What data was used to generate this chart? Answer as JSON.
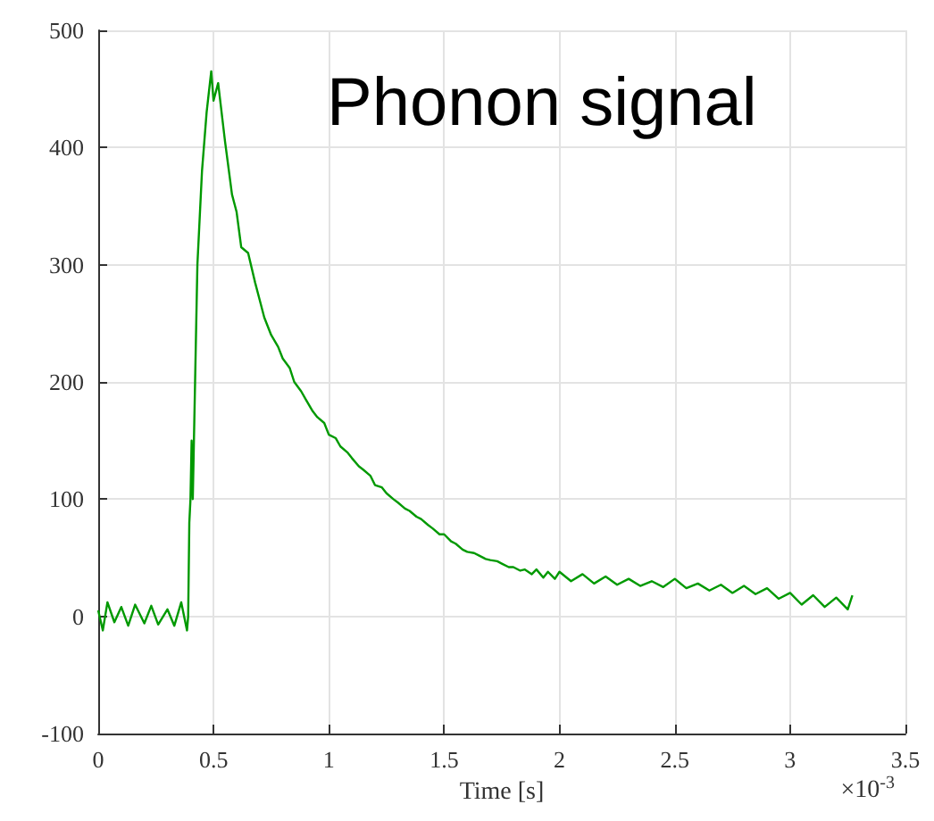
{
  "chart_data": {
    "type": "line",
    "title": "Phonon signal",
    "xlabel": "Time [s]",
    "annotations": [
      "×10$^{-3}$"
    ],
    "series": [
      {
        "color": "#009900",
        "x": [
          0,
          0.02,
          0.04,
          0.07,
          0.1,
          0.13,
          0.16,
          0.2,
          0.23,
          0.26,
          0.3,
          0.33,
          0.36,
          0.385,
          0.39,
          0.395,
          0.4,
          0.405,
          0.41,
          0.42,
          0.43,
          0.45,
          0.47,
          0.49,
          0.5,
          0.52,
          0.55,
          0.58,
          0.6,
          0.62,
          0.65,
          0.68,
          0.7,
          0.72,
          0.75,
          0.78,
          0.8,
          0.83,
          0.85,
          0.88,
          0.9,
          0.93,
          0.95,
          0.98,
          1.0,
          1.03,
          1.05,
          1.08,
          1.1,
          1.13,
          1.15,
          1.18,
          1.2,
          1.23,
          1.25,
          1.28,
          1.3,
          1.33,
          1.35,
          1.38,
          1.4,
          1.43,
          1.45,
          1.48,
          1.5,
          1.53,
          1.55,
          1.58,
          1.6,
          1.63,
          1.65,
          1.68,
          1.7,
          1.73,
          1.75,
          1.78,
          1.8,
          1.83,
          1.85,
          1.88,
          1.9,
          1.93,
          1.95,
          1.98,
          2.0,
          2.05,
          2.1,
          2.15,
          2.2,
          2.25,
          2.3,
          2.35,
          2.4,
          2.45,
          2.5,
          2.55,
          2.6,
          2.65,
          2.7,
          2.75,
          2.8,
          2.85,
          2.9,
          2.95,
          3.0,
          3.05,
          3.1,
          3.15,
          3.2,
          3.25,
          3.27
        ],
        "values": [
          5,
          -12,
          12,
          -5,
          8,
          -8,
          10,
          -6,
          9,
          -7,
          6,
          -8,
          12,
          -12,
          0,
          80,
          100,
          150,
          100,
          200,
          300,
          380,
          430,
          465,
          440,
          455,
          405,
          360,
          345,
          315,
          310,
          285,
          270,
          255,
          240,
          230,
          220,
          212,
          200,
          192,
          185,
          175,
          170,
          165,
          155,
          152,
          145,
          140,
          135,
          128,
          125,
          120,
          112,
          110,
          105,
          100,
          97,
          92,
          90,
          85,
          83,
          78,
          75,
          70,
          70,
          64,
          62,
          57,
          55,
          54,
          52,
          49,
          48,
          47,
          45,
          42,
          42,
          39,
          40,
          36,
          40,
          33,
          38,
          32,
          38,
          30,
          36,
          28,
          34,
          27,
          32,
          26,
          30,
          25,
          32,
          24,
          28,
          22,
          27,
          20,
          26,
          19,
          24,
          15,
          20,
          10,
          18,
          8,
          16,
          6,
          18
        ]
      }
    ],
    "xlim": [
      0,
      3.5
    ],
    "xticks": [
      0,
      0.5,
      1,
      1.5,
      2,
      2.5,
      3,
      3.5
    ],
    "ylim": [
      -100,
      500
    ],
    "yticks": [
      -100,
      0,
      100,
      200,
      300,
      400,
      500
    ],
    "grid": true,
    "marker": "none",
    "line_style": "solid"
  }
}
